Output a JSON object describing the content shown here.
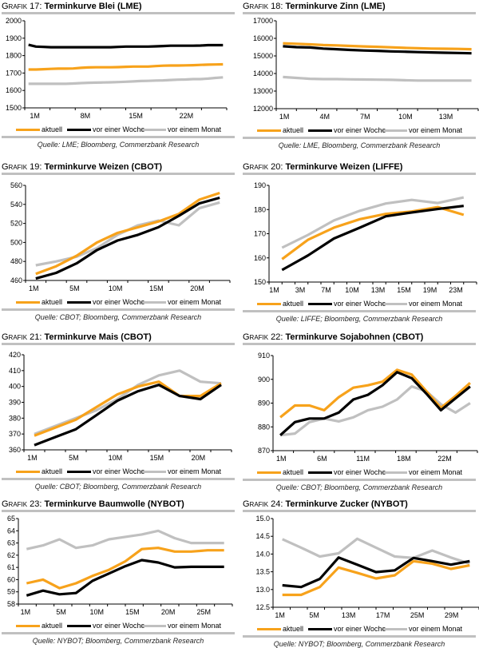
{
  "series_names": [
    "aktuell",
    "vor einer Woche",
    "vor einem Monat"
  ],
  "colors": {
    "aktuell": "#f7a21b",
    "woche": "#000000",
    "monat": "#c0c0c0",
    "rule": "#c0c0c0"
  },
  "chart_data": [
    {
      "type": "line",
      "label_prefix": "Grafik 17:",
      "title": "Terminkurve Blei (LME)",
      "source": "Quelle: LME; Bloomberg, Commerzbank Research",
      "ylim": [
        1500,
        2000
      ],
      "yticks": [
        1500,
        1600,
        1700,
        1800,
        1900,
        2000
      ],
      "xtick_labels": [
        "1M",
        "8M",
        "15M",
        "22M"
      ],
      "x": [
        1,
        2,
        3,
        4,
        5,
        6,
        7,
        8,
        9,
        10,
        11,
        12,
        13,
        14,
        15,
        16,
        17,
        18,
        19,
        20,
        21,
        22,
        23,
        24,
        25,
        26,
        27
      ],
      "series": [
        {
          "name": "aktuell",
          "values": [
            1720,
            1720,
            1722,
            1724,
            1725,
            1725,
            1726,
            1730,
            1732,
            1733,
            1733,
            1733,
            1734,
            1736,
            1737,
            1737,
            1737,
            1740,
            1742,
            1743,
            1743,
            1744,
            1745,
            1747,
            1748,
            1749,
            1750
          ]
        },
        {
          "name": "vor einer Woche",
          "values": [
            1862,
            1852,
            1850,
            1848,
            1848,
            1848,
            1848,
            1848,
            1848,
            1848,
            1848,
            1848,
            1850,
            1852,
            1852,
            1852,
            1852,
            1853,
            1855,
            1857,
            1857,
            1857,
            1857,
            1858,
            1860,
            1860,
            1860
          ]
        },
        {
          "name": "vor einem Monat",
          "values": [
            1638,
            1638,
            1638,
            1638,
            1638,
            1638,
            1640,
            1642,
            1644,
            1645,
            1646,
            1647,
            1648,
            1650,
            1652,
            1654,
            1655,
            1657,
            1658,
            1660,
            1662,
            1663,
            1665,
            1665,
            1668,
            1672,
            1675
          ]
        }
      ]
    },
    {
      "type": "line",
      "label_prefix": "Grafik 18:",
      "title": "Terminkurve Zinn (LME)",
      "source": "Quelle: LME, Bloomberg, Commerzbank Research",
      "ylim": [
        12000,
        17000
      ],
      "yticks": [
        12000,
        13000,
        14000,
        15000,
        16000,
        17000
      ],
      "xtick_labels": [
        "1M",
        "4M",
        "7M",
        "10M",
        "13M"
      ],
      "x": [
        1,
        2,
        3,
        4,
        5,
        6,
        7,
        8,
        9,
        10,
        11,
        12,
        13,
        14,
        15
      ],
      "series": [
        {
          "name": "aktuell",
          "values": [
            15720,
            15690,
            15660,
            15620,
            15600,
            15570,
            15540,
            15520,
            15490,
            15460,
            15440,
            15420,
            15410,
            15400,
            15380
          ]
        },
        {
          "name": "vor einer Woche",
          "values": [
            15550,
            15500,
            15480,
            15420,
            15380,
            15340,
            15310,
            15290,
            15260,
            15240,
            15220,
            15200,
            15180,
            15170,
            15150
          ]
        },
        {
          "name": "vor einem Monat",
          "values": [
            13800,
            13750,
            13700,
            13680,
            13680,
            13670,
            13660,
            13650,
            13640,
            13620,
            13600,
            13600,
            13600,
            13600,
            13600
          ]
        }
      ]
    },
    {
      "type": "line",
      "label_prefix": "Grafik 19:",
      "title": "Terminkurve Weizen (CBOT)",
      "source": "Quelle: CBOT; Bloomberg, Commerzbank Research",
      "ylim": [
        460,
        560
      ],
      "yticks": [
        460,
        480,
        500,
        520,
        540,
        560
      ],
      "xtick_labels": [
        "1M",
        "5M",
        "10M",
        "15M",
        "20M"
      ],
      "x": [
        1,
        2,
        3,
        4,
        5,
        6,
        7,
        8,
        9,
        10
      ],
      "series": [
        {
          "name": "aktuell",
          "values": [
            467,
            475,
            486,
            500,
            510,
            516,
            522,
            530,
            545,
            552
          ]
        },
        {
          "name": "vor einer Woche",
          "values": [
            462,
            468,
            478,
            492,
            502,
            508,
            516,
            528,
            541,
            547
          ]
        },
        {
          "name": "vor einem Monat",
          "values": [
            476,
            480,
            485,
            494,
            508,
            518,
            523,
            518,
            536,
            542
          ]
        }
      ]
    },
    {
      "type": "line",
      "label_prefix": "Grafik 20:",
      "title": "Terminkurve Weizen (LIFFE)",
      "source": "Quelle: LIFFE; Bloomberg, Commerzbank Research",
      "ylim": [
        150,
        190
      ],
      "yticks": [
        150,
        160,
        170,
        180,
        190
      ],
      "xtick_labels": [
        "1M",
        "3M",
        "7M",
        "10M",
        "13M",
        "15M",
        "19M",
        "23M"
      ],
      "x": [
        1,
        2,
        3,
        4,
        5,
        6,
        7,
        8
      ],
      "series": [
        {
          "name": "aktuell",
          "values": [
            159.5,
            167.5,
            172.5,
            176,
            178.2,
            179.2,
            181,
            177.8
          ]
        },
        {
          "name": "vor einer Woche",
          "values": [
            155,
            161,
            168,
            172.5,
            177.2,
            178.8,
            180.2,
            181.5
          ]
        },
        {
          "name": "vor einem Monat",
          "values": [
            164.2,
            169.5,
            175.5,
            179.5,
            182.5,
            184,
            182.7,
            185
          ]
        }
      ]
    },
    {
      "type": "line",
      "label_prefix": "Grafik 21:",
      "title": "Terminkurve Mais (CBOT)",
      "source": "Quelle: CBOT; Bloomberg, Commerzbank Research",
      "ylim": [
        360,
        420
      ],
      "yticks": [
        360,
        370,
        380,
        390,
        400,
        410,
        420
      ],
      "xtick_labels": [
        "1M",
        "5M",
        "10M",
        "15M",
        "20M"
      ],
      "x": [
        1,
        2,
        3,
        4,
        5,
        6,
        7,
        8,
        9,
        10
      ],
      "series": [
        {
          "name": "aktuell",
          "values": [
            369,
            374,
            379,
            387,
            395,
            400,
            403,
            394,
            394,
            402
          ]
        },
        {
          "name": "vor einer Woche",
          "values": [
            363,
            368,
            373,
            382,
            391,
            397,
            401,
            394,
            392,
            401
          ]
        },
        {
          "name": "vor einem Monat",
          "values": [
            370,
            375,
            380,
            385,
            392,
            401,
            407,
            410,
            403,
            402
          ]
        }
      ]
    },
    {
      "type": "line",
      "label_prefix": "Grafik 22:",
      "title": "Terminkurve Sojabohnen (CBOT)",
      "source": "Quelle: CBOT; Bloomberg, Commerzbank Research",
      "ylim": [
        870,
        910
      ],
      "yticks": [
        870,
        880,
        890,
        900,
        910
      ],
      "xtick_labels": [
        "1M",
        "6M",
        "11M",
        "18M",
        "22M"
      ],
      "x": [
        1,
        2,
        3,
        4,
        5,
        6,
        7,
        8,
        9,
        10,
        11,
        12,
        13,
        14
      ],
      "series": [
        {
          "name": "aktuell",
          "values": [
            884,
            889,
            889,
            887,
            892.5,
            896.5,
            897.5,
            899,
            904,
            902,
            895,
            888,
            893,
            898.5
          ]
        },
        {
          "name": "vor einer Woche",
          "values": [
            876.5,
            882,
            883.5,
            883.5,
            886,
            891.5,
            893.5,
            897.5,
            903,
            900.5,
            894,
            887,
            892,
            897
          ]
        },
        {
          "name": "vor einem Monat",
          "values": [
            876.5,
            877.2,
            882,
            883.5,
            882.3,
            884,
            887,
            888.5,
            891.5,
            897,
            895,
            889.5,
            886,
            890
          ]
        }
      ]
    },
    {
      "type": "line",
      "label_prefix": "Grafik 23:",
      "title": "Terminkurve Baumwolle (NYBOT)",
      "source": "Quelle: NYBOT; Bloomberg, Commerzbank Research",
      "ylim": [
        58,
        65
      ],
      "yticks": [
        58,
        59,
        60,
        61,
        62,
        63,
        64,
        65
      ],
      "xtick_labels": [
        "1M",
        "5M",
        "10M",
        "15M",
        "20M",
        "25M"
      ],
      "x": [
        1,
        2,
        3,
        4,
        5,
        6,
        7,
        8,
        9,
        10,
        11,
        12,
        13
      ],
      "series": [
        {
          "name": "aktuell",
          "values": [
            59.7,
            60.0,
            59.3,
            59.7,
            60.3,
            60.8,
            61.5,
            62.5,
            62.6,
            62.3,
            62.3,
            62.4,
            62.4
          ]
        },
        {
          "name": "vor einer Woche",
          "values": [
            58.7,
            59.1,
            58.8,
            58.9,
            59.9,
            60.5,
            61.1,
            61.6,
            61.4,
            61.0,
            61.05,
            61.05,
            61.05
          ]
        },
        {
          "name": "vor einem Monat",
          "values": [
            62.5,
            62.8,
            63.3,
            62.6,
            62.8,
            63.3,
            63.5,
            63.7,
            64.0,
            63.4,
            63.0,
            63.0,
            63.0
          ]
        }
      ]
    },
    {
      "type": "line",
      "label_prefix": "Grafik 24:",
      "title": "Terminkurve Zucker (NYBOT)",
      "source": "Quelle: NYBOT; Bloomberg, Commerzbank Research",
      "ylim": [
        12.5,
        15.0
      ],
      "yticks": [
        "12.5",
        "13.0",
        "13.5",
        "14.0",
        "14.5",
        "15.0"
      ],
      "xtick_labels": [
        "1M",
        "5M",
        "13M",
        "17M",
        "25M",
        "29M"
      ],
      "x": [
        1,
        2,
        3,
        4,
        5,
        6,
        7,
        8,
        9,
        10,
        11
      ],
      "series": [
        {
          "name": "aktuell",
          "values": [
            12.85,
            12.85,
            13.07,
            13.62,
            13.47,
            13.31,
            13.4,
            13.8,
            13.73,
            13.58,
            13.68
          ]
        },
        {
          "name": "vor einer Woche",
          "values": [
            13.12,
            13.07,
            13.3,
            13.9,
            13.7,
            13.49,
            13.54,
            13.89,
            13.8,
            13.7,
            13.8
          ]
        },
        {
          "name": "vor einem Monat",
          "values": [
            14.42,
            14.18,
            13.93,
            14.02,
            14.43,
            14.18,
            13.93,
            13.89,
            14.1,
            13.9,
            13.73
          ]
        }
      ]
    }
  ]
}
